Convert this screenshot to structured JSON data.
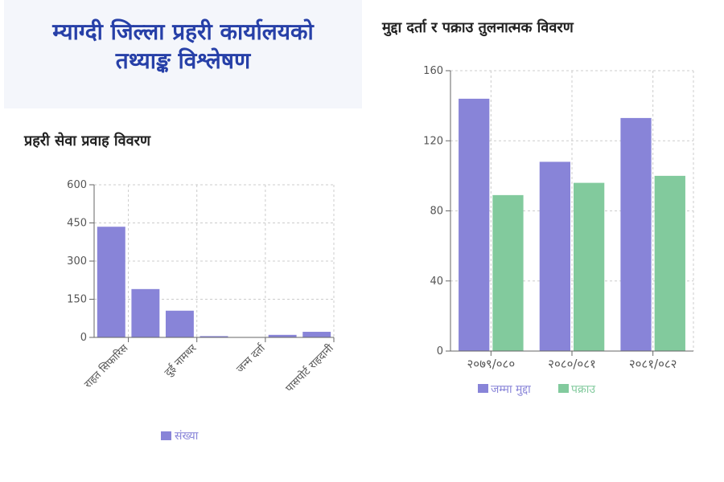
{
  "header": {
    "title_line1": "म्याग्दी जिल्ला प्रहरी कार्यालयको",
    "title_line2": "तथ्याङ्क विश्लेषण"
  },
  "colors": {
    "purple": "#8884d8",
    "green": "#82ca9d",
    "grid": "#cccccc",
    "axis": "#666666"
  },
  "chart_data": [
    {
      "type": "bar",
      "title": "प्रहरी सेवा प्रवाह विवरण",
      "categories": [
        "राहत सिफारिस",
        "",
        "दुई नामथर",
        "",
        "जन्म दर्ता",
        "",
        "पासपोर्ट राहदानी"
      ],
      "x_tick_labels": [
        "राहत सिफारिस",
        "दुई नामथर",
        "जन्म दर्ता",
        "पासपोर्ट राहदानी"
      ],
      "series": [
        {
          "name": "संख्या",
          "color": "#8884d8",
          "values": [
            435,
            190,
            105,
            5,
            0,
            10,
            22
          ]
        }
      ],
      "ylim": [
        0,
        600
      ],
      "yticks": [
        0,
        150,
        300,
        450,
        600
      ],
      "grid": true,
      "legend": "bottom-center"
    },
    {
      "type": "bar",
      "title": "मुद्दा दर्ता र पक्राउ तुलनात्मक विवरण",
      "categories": [
        "२०७९/०८०",
        "२०८०/०८१",
        "२०८१/०८२"
      ],
      "series": [
        {
          "name": "जम्मा मुद्दा",
          "color": "#8884d8",
          "values": [
            144,
            108,
            133
          ]
        },
        {
          "name": "पक्राउ",
          "color": "#82ca9d",
          "values": [
            89,
            96,
            100
          ]
        }
      ],
      "ylim": [
        0,
        160
      ],
      "yticks": [
        0,
        40,
        80,
        120,
        160
      ],
      "grid": true,
      "legend": "bottom-center"
    }
  ]
}
